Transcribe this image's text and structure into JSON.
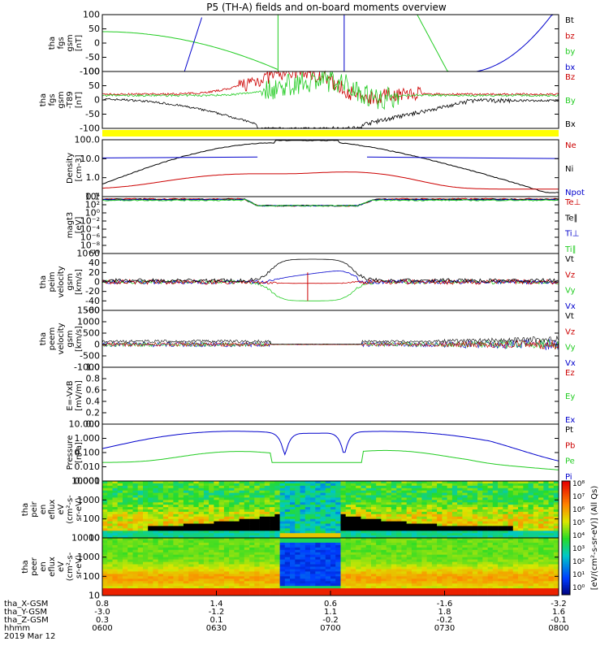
{
  "title": "P5 (TH-A) fields and on-board moments overview",
  "chart_data": {
    "type": "line",
    "title": "P5 (TH-A) fields and on-board moments overview",
    "panels": [
      {
        "id": "fgs-gsm",
        "ylabel": [
          "tha",
          "fgs",
          "gsm",
          "[nT]"
        ],
        "ylim": [
          -100,
          100
        ],
        "yticks": [
          "100",
          "50",
          "0",
          "-50",
          "-100"
        ],
        "legend": [
          {
            "text": "Bt",
            "color": "#000000"
          },
          {
            "text": "bz",
            "color": "#cc0000"
          },
          {
            "text": "by",
            "color": "#22cc22"
          },
          {
            "text": "bx",
            "color": "#0000cc"
          }
        ]
      },
      {
        "id": "fgs-gsm-t89",
        "ylabel": [
          "tha",
          "fgs",
          "gsm",
          "-T89",
          "[nT]"
        ],
        "ylim": [
          -125,
          100
        ],
        "yticks": [
          "100",
          "50",
          "0",
          "-50",
          "-100"
        ],
        "legend": [
          {
            "text": "Bz",
            "color": "#cc0000"
          },
          {
            "text": "By",
            "color": "#22cc22"
          },
          {
            "text": "Bx",
            "color": "#000000"
          }
        ]
      },
      {
        "id": "density",
        "ylabel": [
          "Density",
          "[cm-3]"
        ],
        "ylim": [
          0.05,
          200
        ],
        "log": true,
        "yticks": [
          "100.0",
          "10.0",
          "1.0",
          "0.1"
        ],
        "legend": [
          {
            "text": "Ne",
            "color": "#cc0000"
          },
          {
            "text": "Ni",
            "color": "#000000"
          },
          {
            "text": "Npot",
            "color": "#0000cc"
          }
        ]
      },
      {
        "id": "temperature",
        "ylabel": [
          "magt3",
          "[eV]"
        ],
        "ylim": [
          1e-10,
          100000.0
        ],
        "log": true,
        "yticks": [
          "10⁴",
          "10²",
          "10⁰",
          "10⁻²",
          "10⁻⁴",
          "10⁻⁶",
          "10⁻⁸",
          "10⁻¹⁰"
        ],
        "legend": [
          {
            "text": "Te⊥",
            "color": "#cc0000"
          },
          {
            "text": "Te∥",
            "color": "#000000"
          },
          {
            "text": "Ti⊥",
            "color": "#0000cc"
          },
          {
            "text": "Ti∥",
            "color": "#22cc22"
          }
        ]
      },
      {
        "id": "peim-velocity",
        "ylabel": [
          "tha",
          "peim",
          "velocity",
          "gsm",
          "[km/s]"
        ],
        "ylim": [
          -60,
          60
        ],
        "yticks": [
          "60",
          "40",
          "20",
          "0",
          "-20",
          "-40",
          "-60"
        ],
        "legend": [
          {
            "text": "Vt",
            "color": "#000000"
          },
          {
            "text": "Vz",
            "color": "#cc0000"
          },
          {
            "text": "Vy",
            "color": "#22cc22"
          },
          {
            "text": "Vx",
            "color": "#0000cc"
          }
        ]
      },
      {
        "id": "peem-velocity",
        "ylabel": [
          "tha",
          "peem",
          "velocity",
          "gsm",
          "[km/s]"
        ],
        "ylim": [
          -1000,
          1500
        ],
        "yticks": [
          "1500",
          "1000",
          "500",
          "0",
          "-500",
          "-1000"
        ],
        "legend": [
          {
            "text": "Vt",
            "color": "#000000"
          },
          {
            "text": "Vz",
            "color": "#cc0000"
          },
          {
            "text": "Vy",
            "color": "#22cc22"
          },
          {
            "text": "Vx",
            "color": "#0000cc"
          }
        ]
      },
      {
        "id": "efield",
        "ylabel": [
          "E=-VxB",
          "[mV/m]"
        ],
        "ylim": [
          0,
          1
        ],
        "yticks": [
          "1.0",
          "0.8",
          "0.6",
          "0.4",
          "0.2",
          "0.0"
        ],
        "legend": [
          {
            "text": "Ez",
            "color": "#cc0000"
          },
          {
            "text": "Ey",
            "color": "#22cc22"
          },
          {
            "text": "Ex",
            "color": "#0000cc"
          }
        ]
      },
      {
        "id": "pressure",
        "ylabel": [
          "Pressure",
          "[nPa]"
        ],
        "ylim": [
          0.001,
          10
        ],
        "log": true,
        "yticks": [
          "10.000",
          "1.000",
          "0.100",
          "0.010",
          "0.001"
        ],
        "legend": [
          {
            "text": "Pt",
            "color": "#000000"
          },
          {
            "text": "Pb",
            "color": "#cc0000"
          },
          {
            "text": "Pe",
            "color": "#22cc22"
          },
          {
            "text": "Pi",
            "color": "#0000cc"
          }
        ]
      },
      {
        "id": "peir",
        "ylabel": [
          "tha",
          "peir",
          "en",
          "eflux",
          "eV",
          "(cm²-s-",
          "sr-eV)"
        ],
        "yticks": [
          "10000",
          "1000",
          "100",
          "10"
        ]
      },
      {
        "id": "peer",
        "ylabel": [
          "tha",
          "peer",
          "en",
          "eflux",
          "eV",
          "(cm²-s-",
          "sr-eV)"
        ],
        "yticks": [
          "10000",
          "1000",
          "100",
          "10"
        ]
      }
    ],
    "colorbar": {
      "label": "[eV/(cm²-s-sr-eV)] (All Qs)",
      "tick_labels": [
        "10⁸",
        "10⁷",
        "10⁶",
        "10⁵",
        "10⁴",
        "10³",
        "10²",
        "10¹",
        "10⁰"
      ]
    },
    "xaxis": {
      "rows": [
        {
          "label": "tha_X-GSM",
          "values": [
            "0.8",
            "1.4",
            "0.6",
            "-1.6",
            "-3.2"
          ]
        },
        {
          "label": "tha_Y-GSM",
          "values": [
            "-3.0",
            "-1.2",
            "1.1",
            "1.8",
            "1.6"
          ]
        },
        {
          "label": "tha_Z-GSM",
          "values": [
            "0.3",
            "0.1",
            "-0.2",
            "-0.2",
            "-0.1"
          ]
        },
        {
          "label": "hhmm",
          "values": [
            "0600",
            "0630",
            "0700",
            "0730",
            "0800"
          ]
        }
      ],
      "date": "2019 Mar 12"
    }
  }
}
